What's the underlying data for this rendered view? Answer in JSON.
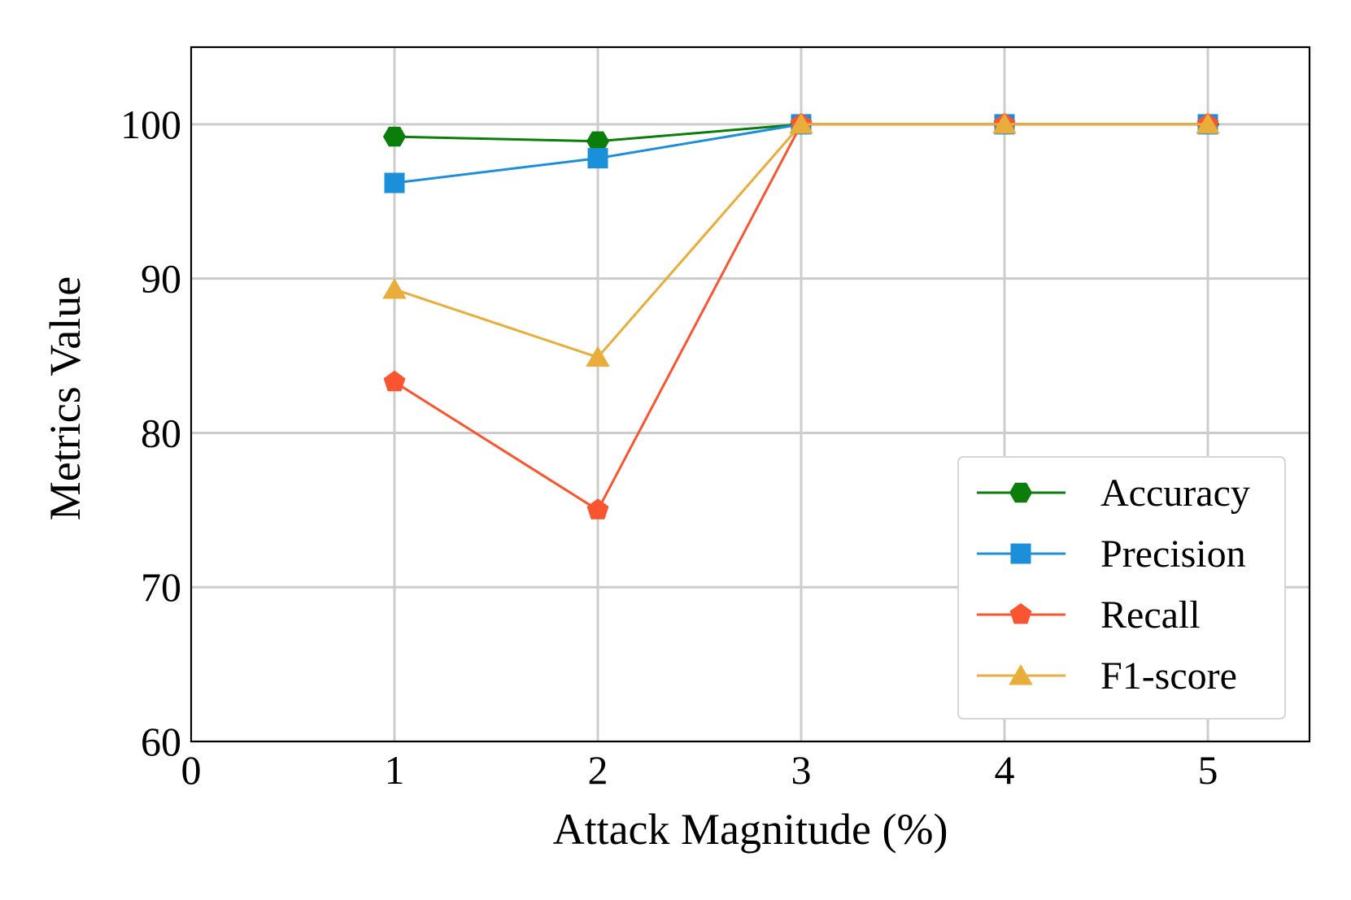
{
  "chart_data": {
    "type": "line",
    "title": "",
    "xlabel": "Attack Magnitude (%)",
    "ylabel": "Metrics Value",
    "xlim": [
      0,
      5.5
    ],
    "ylim": [
      60,
      105
    ],
    "xticks": [
      "0",
      "1",
      "2",
      "3",
      "4",
      "5"
    ],
    "yticks": [
      "60",
      "70",
      "80",
      "90",
      "100"
    ],
    "grid": true,
    "legend_position": "lower-right",
    "x": [
      1,
      2,
      3,
      4,
      5
    ],
    "series": [
      {
        "name": "Accuracy",
        "values": [
          99.2,
          98.9,
          100,
          100,
          100
        ],
        "color": "#0a7d0a",
        "marker": "hexagon"
      },
      {
        "name": "Precision",
        "values": [
          96.2,
          97.8,
          100,
          100,
          100
        ],
        "color": "#1c8fdb",
        "marker": "square"
      },
      {
        "name": "Recall",
        "values": [
          83.3,
          75.0,
          100,
          100,
          100
        ],
        "color": "#fb5430",
        "marker": "pentagon"
      },
      {
        "name": "F1-score",
        "values": [
          89.3,
          84.9,
          100,
          100,
          100
        ],
        "color": "#e8ad3a",
        "marker": "triangle"
      }
    ]
  }
}
